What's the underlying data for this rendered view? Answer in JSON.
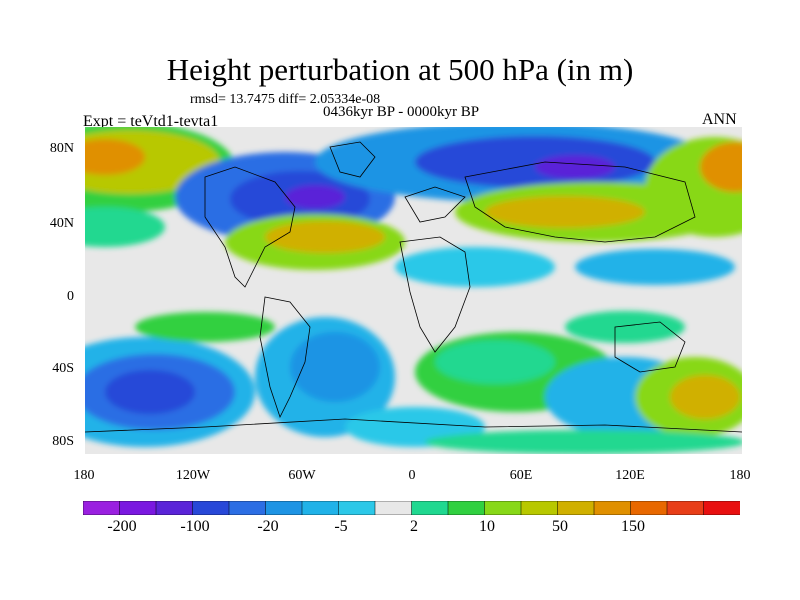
{
  "title": "Height perturbation at 500 hPa (in m)",
  "stats": "rmsd= 13.7475 diff= 2.05334e-08",
  "period": "0436kyr BP - 0000kyr BP",
  "experiment": "Expt = teVtd1-tevta1",
  "season": "ANN",
  "y_axis_labels": [
    "80N",
    "40N",
    "0",
    "40S",
    "80S"
  ],
  "x_axis_labels": [
    "180",
    "120W",
    "60W",
    "0",
    "60E",
    "120E",
    "180"
  ],
  "colorbar": {
    "labels": [
      "-200",
      "-100",
      "-20",
      "-5",
      "2",
      "10",
      "50",
      "150"
    ],
    "colors": [
      "#9a20e0",
      "#7a18e0",
      "#5a24d8",
      "#2848d8",
      "#2c6ee4",
      "#1e94e4",
      "#20b2e8",
      "#2cc8e8",
      "#e8e8e8",
      "#20d890",
      "#30d040",
      "#88d818",
      "#b8c800",
      "#d0b000",
      "#e09000",
      "#e86800",
      "#e83e18",
      "#e81010"
    ]
  },
  "colors": {
    "neutral": "#e8e8e8",
    "coast": "#000000"
  }
}
